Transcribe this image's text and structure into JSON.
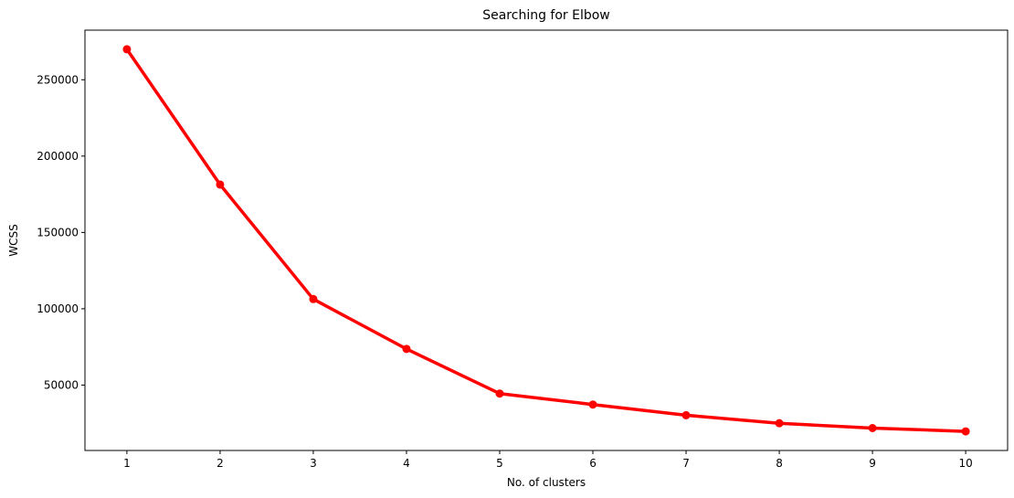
{
  "chart_data": {
    "type": "line",
    "title": "Searching for Elbow",
    "xlabel": "No. of clusters",
    "ylabel": "WCSS",
    "x": [
      1,
      2,
      3,
      4,
      5,
      6,
      7,
      8,
      9,
      10
    ],
    "series": [
      {
        "values": [
          269981,
          181363,
          106348,
          73679,
          44448,
          37265,
          30259,
          25011,
          21819,
          19672
        ],
        "color": "#ff0000",
        "marker": "circle"
      }
    ],
    "xlim": [
      0.55,
      10.45
    ],
    "ylim": [
      7157,
      282496
    ],
    "xticks": [
      "1",
      "2",
      "3",
      "4",
      "5",
      "6",
      "7",
      "8",
      "9",
      "10"
    ],
    "yticks": [
      {
        "value": 50000,
        "label": "50000"
      },
      {
        "value": 100000,
        "label": "100000"
      },
      {
        "value": 150000,
        "label": "150000"
      },
      {
        "value": 200000,
        "label": "200000"
      },
      {
        "value": 250000,
        "label": "250000"
      }
    ],
    "grid": false,
    "legend": "none"
  }
}
